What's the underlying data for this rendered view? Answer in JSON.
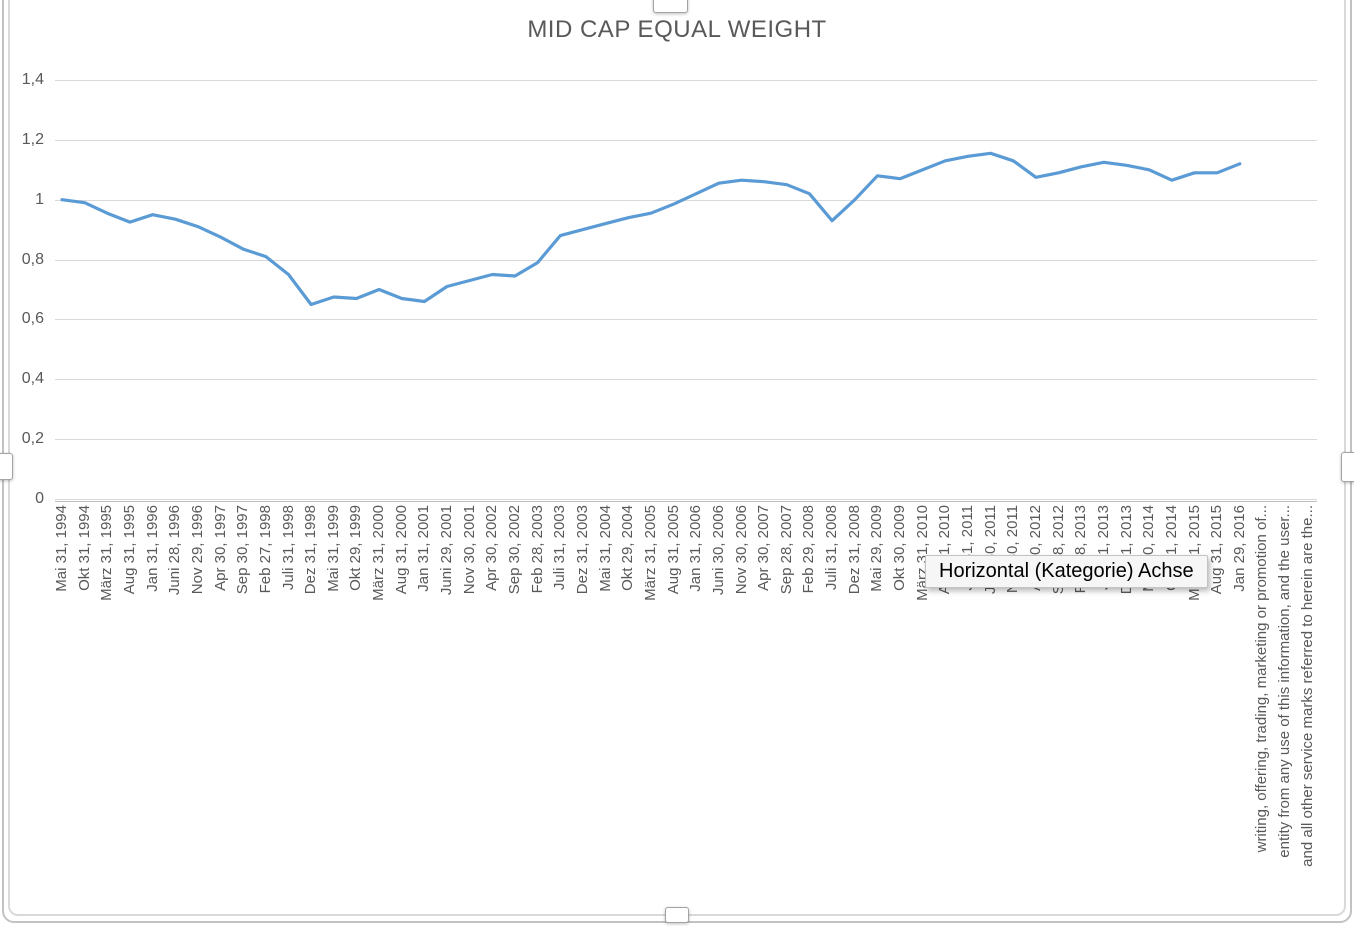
{
  "chart": {
    "title": "MID CAP EQUAL WEIGHT",
    "tooltip": "Horizontal (Kategorie) Achse"
  },
  "colors": {
    "series_line": "#5B9BD5",
    "gridline": "#D9D9D9",
    "axis_text": "#595959",
    "tooltip_text": "#000000"
  },
  "chart_data": {
    "type": "line",
    "title": "MID CAP EQUAL WEIGHT",
    "xlabel": "",
    "ylabel": "",
    "ylim": [
      0,
      1.4
    ],
    "grid": "horizontal",
    "legend": "none",
    "yticks": [
      "1,4",
      "1,2",
      "1",
      "0,8",
      "0,6",
      "0,4",
      "0,2",
      "0"
    ],
    "categories": [
      "Mai 31, 1994",
      "Okt 31, 1994",
      "März 31, 1995",
      "Aug 31, 1995",
      "Jan 31, 1996",
      "Juni 28, 1996",
      "Nov 29, 1996",
      "Apr 30, 1997",
      "Sep 30, 1997",
      "Feb 27, 1998",
      "Juli 31, 1998",
      "Dez 31, 1998",
      "Mai 31, 1999",
      "Okt 29, 1999",
      "März 31, 2000",
      "Aug 31, 2000",
      "Jan 31, 2001",
      "Juni 29, 2001",
      "Nov 30, 2001",
      "Apr 30, 2002",
      "Sep 30, 2002",
      "Feb 28, 2003",
      "Juli 31, 2003",
      "Dez 31, 2003",
      "Mai 31, 2004",
      "Okt 29, 2004",
      "März 31, 2005",
      "Aug 31, 2005",
      "Jan 31, 2006",
      "Juni 30, 2006",
      "Nov 30, 2006",
      "Apr 30, 2007",
      "Sep 28, 2007",
      "Feb 29, 2008",
      "Juli 31, 2008",
      "Dez 31, 2008",
      "Mai 29, 2009",
      "Okt 30, 2009",
      "März 31, 2010",
      "Aug 31, 2010",
      "Jan 31, 2011",
      "Juni 30, 2011",
      "Nov 30, 2011",
      "Apr 30, 2012",
      "Sep 28, 2012",
      "Feb 28, 2013",
      "Juli 31, 2013",
      "Dez 31, 2013",
      "Mai 30, 2014",
      "Okt 31, 2014",
      "März 31, 2015",
      "Aug 31, 2015",
      "Jan 29, 2016"
    ],
    "disclaimer_labels": [
      "writing, offering, trading, marketing or promotion of...",
      "entity from any use of this information, and the user...",
      "and all other service marks referred to herein are the..."
    ],
    "series": [
      {
        "name": "MID CAP EQUAL WEIGHT",
        "color": "#5B9BD5",
        "values": [
          1.0,
          0.99,
          0.955,
          0.925,
          0.95,
          0.935,
          0.91,
          0.875,
          0.835,
          0.81,
          0.75,
          0.65,
          0.675,
          0.67,
          0.7,
          0.67,
          0.66,
          0.71,
          0.73,
          0.75,
          0.745,
          0.79,
          0.88,
          0.9,
          0.92,
          0.94,
          0.955,
          0.985,
          1.02,
          1.055,
          1.065,
          1.06,
          1.05,
          1.02,
          0.93,
          1.0,
          1.08,
          1.07,
          1.1,
          1.13,
          1.145,
          1.155,
          1.13,
          1.075,
          1.09,
          1.11,
          1.125,
          1.115,
          1.1,
          1.065,
          1.09,
          1.09,
          1.12
        ]
      }
    ]
  }
}
